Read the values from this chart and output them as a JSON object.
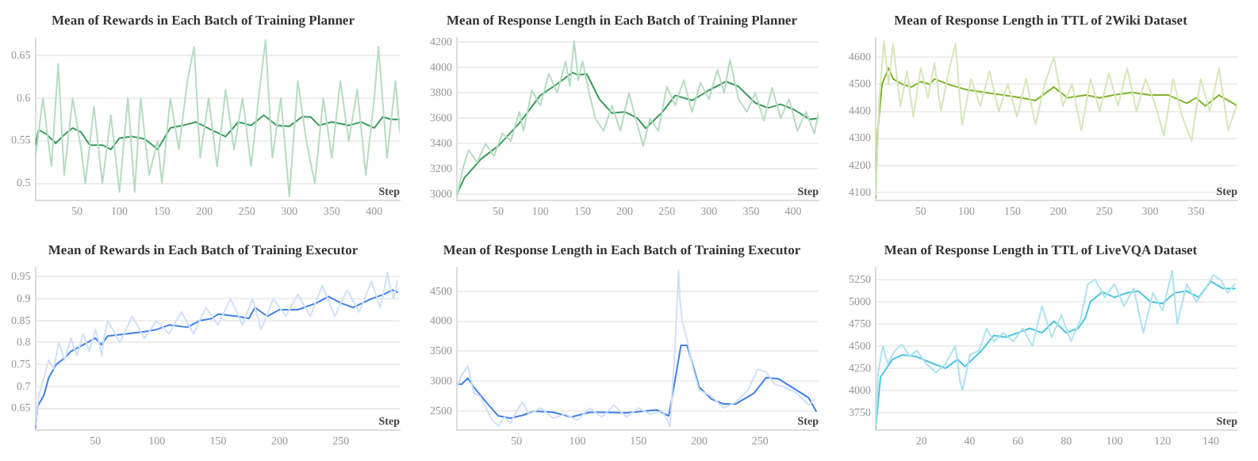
{
  "chart_data": [
    {
      "type": "line",
      "title": "Mean of Rewards in Each Batch of Training Planner",
      "xlabel": "Step",
      "xlim": [
        1,
        430
      ],
      "xticks": [
        50,
        100,
        150,
        200,
        250,
        300,
        350,
        400
      ],
      "ylim": [
        0.48,
        0.67
      ],
      "yticks": [
        0.5,
        0.55,
        0.6,
        0.65
      ],
      "grid": "y",
      "marker": "none",
      "series": [
        {
          "color": "#b5dcc0",
          "x": [
            1,
            10,
            20,
            28,
            35,
            45,
            55,
            60,
            70,
            80,
            90,
            100,
            110,
            118,
            125,
            135,
            145,
            150,
            160,
            170,
            180,
            188,
            195,
            205,
            215,
            225,
            235,
            245,
            255,
            265,
            272,
            280,
            290,
            300,
            310,
            320,
            330,
            340,
            350,
            360,
            370,
            380,
            390,
            400,
            405,
            415,
            425,
            430
          ],
          "values": [
            0.53,
            0.6,
            0.52,
            0.64,
            0.51,
            0.6,
            0.54,
            0.5,
            0.59,
            0.5,
            0.58,
            0.49,
            0.6,
            0.49,
            0.6,
            0.51,
            0.55,
            0.5,
            0.6,
            0.54,
            0.62,
            0.66,
            0.53,
            0.6,
            0.52,
            0.61,
            0.54,
            0.6,
            0.52,
            0.61,
            0.668,
            0.53,
            0.6,
            0.485,
            0.62,
            0.55,
            0.5,
            0.6,
            0.53,
            0.62,
            0.55,
            0.61,
            0.51,
            0.6,
            0.66,
            0.53,
            0.62,
            0.56
          ]
        },
        {
          "color": "#3a9a5b",
          "x": [
            1,
            5,
            15,
            25,
            35,
            45,
            55,
            65,
            80,
            90,
            100,
            115,
            130,
            145,
            160,
            175,
            190,
            210,
            225,
            240,
            255,
            270,
            285,
            300,
            315,
            325,
            335,
            350,
            370,
            385,
            400,
            410,
            420,
            430
          ],
          "values": [
            0.545,
            0.563,
            0.557,
            0.547,
            0.557,
            0.565,
            0.56,
            0.545,
            0.545,
            0.54,
            0.553,
            0.555,
            0.552,
            0.54,
            0.565,
            0.568,
            0.572,
            0.562,
            0.555,
            0.572,
            0.568,
            0.58,
            0.568,
            0.567,
            0.578,
            0.578,
            0.568,
            0.572,
            0.568,
            0.572,
            0.565,
            0.578,
            0.575,
            0.575
          ]
        }
      ]
    },
    {
      "type": "line",
      "title": "Mean of Response Length in Each Batch of Training Planner",
      "xlabel": "Step",
      "xlim": [
        1,
        430
      ],
      "xticks": [
        50,
        100,
        150,
        200,
        250,
        300,
        350,
        400
      ],
      "ylim": [
        2950,
        4230
      ],
      "yticks": [
        3000,
        3200,
        3400,
        3600,
        3800,
        4000,
        4200
      ],
      "grid": "y",
      "marker": "none",
      "series": [
        {
          "color": "#b5dcc0",
          "x": [
            1,
            8,
            15,
            25,
            35,
            45,
            55,
            65,
            75,
            80,
            90,
            100,
            110,
            120,
            130,
            135,
            140,
            145,
            150,
            158,
            165,
            175,
            185,
            195,
            205,
            215,
            222,
            230,
            240,
            250,
            260,
            270,
            280,
            290,
            300,
            310,
            318,
            325,
            335,
            345,
            355,
            365,
            375,
            385,
            395,
            405,
            415,
            425,
            430
          ],
          "values": [
            2980,
            3200,
            3350,
            3250,
            3400,
            3300,
            3480,
            3420,
            3650,
            3500,
            3820,
            3700,
            3950,
            3800,
            4050,
            3850,
            4210,
            3900,
            4050,
            3800,
            3600,
            3500,
            3700,
            3500,
            3800,
            3550,
            3380,
            3600,
            3500,
            3850,
            3700,
            3900,
            3650,
            3880,
            3750,
            3980,
            3800,
            4060,
            3750,
            3650,
            3800,
            3580,
            3840,
            3600,
            3750,
            3500,
            3650,
            3480,
            3640
          ]
        },
        {
          "color": "#3a9a5b",
          "x": [
            1,
            10,
            30,
            50,
            75,
            100,
            120,
            138,
            145,
            155,
            170,
            185,
            200,
            215,
            225,
            245,
            260,
            280,
            300,
            320,
            335,
            355,
            370,
            385,
            400,
            420,
            430
          ],
          "values": [
            3000,
            3130,
            3280,
            3380,
            3560,
            3780,
            3870,
            3960,
            3940,
            3950,
            3750,
            3640,
            3650,
            3600,
            3520,
            3650,
            3780,
            3740,
            3820,
            3890,
            3850,
            3720,
            3680,
            3710,
            3670,
            3590,
            3600
          ]
        }
      ]
    },
    {
      "type": "line",
      "title": "Mean of Response Length in TTL of 2Wiki Dataset",
      "xlabel": "Step",
      "xlim": [
        1,
        395
      ],
      "xticks": [
        50,
        100,
        150,
        200,
        250,
        300,
        350
      ],
      "ylim": [
        4070,
        4670
      ],
      "yticks": [
        4100,
        4200,
        4300,
        4400,
        4500,
        4600
      ],
      "grid": "y",
      "marker": "none",
      "series": [
        {
          "color": "#d6e6b8",
          "x": [
            1,
            5,
            10,
            15,
            20,
            24,
            28,
            32,
            35,
            42,
            50,
            58,
            65,
            72,
            80,
            88,
            95,
            105,
            115,
            125,
            135,
            145,
            155,
            165,
            175,
            185,
            195,
            205,
            215,
            225,
            235,
            245,
            255,
            265,
            275,
            285,
            295,
            305,
            315,
            325,
            335,
            345,
            355,
            365,
            375,
            385,
            395
          ],
          "values": [
            4090,
            4450,
            4660,
            4500,
            4650,
            4530,
            4420,
            4490,
            4550,
            4380,
            4560,
            4450,
            4580,
            4400,
            4540,
            4650,
            4350,
            4520,
            4420,
            4550,
            4400,
            4500,
            4380,
            4520,
            4350,
            4500,
            4600,
            4420,
            4500,
            4330,
            4520,
            4400,
            4540,
            4420,
            4560,
            4400,
            4520,
            4430,
            4310,
            4520,
            4380,
            4290,
            4520,
            4400,
            4560,
            4330,
            4430
          ]
        },
        {
          "color": "#7fb52b",
          "x": [
            1,
            3,
            8,
            15,
            20,
            30,
            40,
            50,
            60,
            65,
            80,
            90,
            100,
            120,
            140,
            160,
            175,
            195,
            210,
            230,
            245,
            260,
            280,
            300,
            320,
            340,
            350,
            360,
            375,
            395
          ],
          "values": [
            4080,
            4320,
            4500,
            4560,
            4520,
            4500,
            4490,
            4510,
            4500,
            4520,
            4500,
            4490,
            4480,
            4470,
            4460,
            4450,
            4440,
            4490,
            4450,
            4460,
            4450,
            4460,
            4470,
            4460,
            4460,
            4430,
            4450,
            4420,
            4460,
            4420
          ]
        }
      ]
    },
    {
      "type": "line",
      "title": "Mean of Rewards in Each Batch of Training Executor",
      "xlabel": "Step",
      "xlim": [
        1,
        298
      ],
      "xticks": [
        50,
        100,
        150,
        200,
        250
      ],
      "ylim": [
        0.6,
        0.97
      ],
      "yticks": [
        0.65,
        0.7,
        0.75,
        0.8,
        0.85,
        0.9,
        0.95
      ],
      "grid": "y",
      "marker": "none",
      "series": [
        {
          "color": "#d0e0f8",
          "x": [
            1,
            4,
            8,
            12,
            16,
            20,
            25,
            30,
            35,
            40,
            45,
            50,
            53,
            55,
            57,
            60,
            70,
            80,
            90,
            100,
            110,
            120,
            130,
            140,
            150,
            160,
            170,
            178,
            185,
            195,
            205,
            215,
            225,
            235,
            245,
            255,
            265,
            275,
            282,
            286,
            288,
            290,
            293,
            296
          ],
          "values": [
            0.61,
            0.68,
            0.72,
            0.76,
            0.74,
            0.8,
            0.76,
            0.81,
            0.77,
            0.82,
            0.78,
            0.83,
            0.8,
            0.77,
            0.81,
            0.85,
            0.8,
            0.86,
            0.81,
            0.85,
            0.82,
            0.87,
            0.82,
            0.88,
            0.84,
            0.9,
            0.84,
            0.9,
            0.83,
            0.9,
            0.86,
            0.91,
            0.86,
            0.93,
            0.86,
            0.92,
            0.87,
            0.94,
            0.88,
            0.93,
            0.96,
            0.93,
            0.9,
            0.94
          ]
        },
        {
          "color": "#3f7fe8",
          "x": [
            1,
            3,
            8,
            12,
            18,
            25,
            30,
            40,
            50,
            55,
            60,
            75,
            90,
            100,
            110,
            125,
            135,
            145,
            150,
            165,
            175,
            180,
            190,
            200,
            215,
            230,
            240,
            250,
            260,
            275,
            285,
            292,
            296
          ],
          "values": [
            0.605,
            0.655,
            0.68,
            0.72,
            0.75,
            0.765,
            0.78,
            0.795,
            0.81,
            0.795,
            0.815,
            0.82,
            0.825,
            0.83,
            0.84,
            0.835,
            0.85,
            0.855,
            0.865,
            0.86,
            0.855,
            0.88,
            0.86,
            0.875,
            0.875,
            0.89,
            0.905,
            0.89,
            0.88,
            0.9,
            0.91,
            0.92,
            0.915
          ]
        }
      ]
    },
    {
      "type": "line",
      "title": "Mean of Response Length in Each Batch of Training Executor",
      "xlabel": "Step",
      "xlim": [
        1,
        298
      ],
      "xticks": [
        50,
        100,
        150,
        200,
        250
      ],
      "ylim": [
        2180,
        4890
      ],
      "yticks": [
        2500,
        3000,
        3500,
        4000,
        4500
      ],
      "grid": "y",
      "marker": "none",
      "series": [
        {
          "color": "#d0e0f8",
          "x": [
            1,
            5,
            10,
            15,
            20,
            25,
            30,
            35,
            40,
            45,
            50,
            55,
            60,
            70,
            80,
            90,
            100,
            110,
            120,
            130,
            140,
            150,
            160,
            170,
            176,
            180,
            182,
            183,
            184,
            186,
            190,
            195,
            200,
            210,
            220,
            230,
            240,
            248,
            255,
            262,
            270,
            280,
            290,
            295
          ],
          "values": [
            2900,
            3100,
            3250,
            2800,
            2750,
            2550,
            2350,
            2250,
            2400,
            2300,
            2500,
            2650,
            2450,
            2550,
            2380,
            2450,
            2350,
            2550,
            2400,
            2600,
            2400,
            2550,
            2450,
            2500,
            2250,
            3500,
            4400,
            4850,
            4400,
            4000,
            3700,
            3200,
            2850,
            2750,
            2550,
            2650,
            2850,
            3200,
            3150,
            2950,
            2900,
            2800,
            2600,
            2700
          ]
        },
        {
          "color": "#3f7fe8",
          "x": [
            1,
            5,
            10,
            15,
            25,
            35,
            45,
            55,
            65,
            80,
            95,
            110,
            125,
            140,
            155,
            165,
            175,
            180,
            185,
            190,
            200,
            210,
            220,
            230,
            245,
            255,
            265,
            280,
            290,
            296
          ],
          "values": [
            2950,
            2950,
            3050,
            2900,
            2650,
            2420,
            2380,
            2430,
            2500,
            2480,
            2400,
            2480,
            2480,
            2470,
            2500,
            2520,
            2420,
            3000,
            3600,
            3600,
            2900,
            2700,
            2620,
            2620,
            2800,
            3060,
            3040,
            2850,
            2720,
            2500
          ]
        }
      ]
    },
    {
      "type": "line",
      "title": "Mean of Response Length in TTL of LiveVQA Dataset",
      "xlabel": "Step",
      "xlim": [
        1,
        151
      ],
      "xticks": [
        20,
        40,
        60,
        80,
        100,
        120,
        140
      ],
      "ylim": [
        3550,
        5380
      ],
      "yticks": [
        3750,
        4000,
        4250,
        4500,
        4750,
        5000,
        5250
      ],
      "grid": "y",
      "marker": "none",
      "series": [
        {
          "color": "#ade2ee",
          "x": [
            1,
            2,
            4,
            6,
            9,
            12,
            15,
            18,
            22,
            26,
            30,
            34,
            36,
            37,
            40,
            44,
            47,
            50,
            54,
            58,
            62,
            66,
            70,
            74,
            78,
            82,
            86,
            89,
            92,
            96,
            100,
            104,
            108,
            112,
            116,
            120,
            124,
            126,
            130,
            134,
            138,
            141,
            144,
            147,
            150
          ],
          "values": [
            3600,
            4200,
            4500,
            4300,
            4450,
            4520,
            4380,
            4450,
            4300,
            4200,
            4300,
            4500,
            4100,
            4000,
            4400,
            4450,
            4700,
            4550,
            4650,
            4550,
            4700,
            4500,
            4950,
            4600,
            4850,
            4550,
            4800,
            5200,
            5250,
            5050,
            5200,
            4950,
            5150,
            4650,
            5100,
            4900,
            5350,
            4750,
            5200,
            5000,
            5150,
            5300,
            5250,
            5100,
            5200
          ]
        },
        {
          "color": "#4cc3df",
          "x": [
            1,
            3,
            8,
            12,
            18,
            25,
            30,
            35,
            38,
            45,
            50,
            55,
            60,
            65,
            70,
            75,
            80,
            85,
            88,
            90,
            95,
            100,
            105,
            110,
            115,
            120,
            125,
            130,
            135,
            140,
            145,
            150
          ],
          "values": [
            3570,
            4150,
            4350,
            4400,
            4380,
            4300,
            4250,
            4350,
            4270,
            4450,
            4620,
            4600,
            4650,
            4700,
            4650,
            4780,
            4650,
            4700,
            4820,
            5000,
            5110,
            5050,
            5100,
            5120,
            5000,
            4980,
            5100,
            5120,
            5050,
            5230,
            5150,
            5150
          ]
        }
      ]
    }
  ]
}
